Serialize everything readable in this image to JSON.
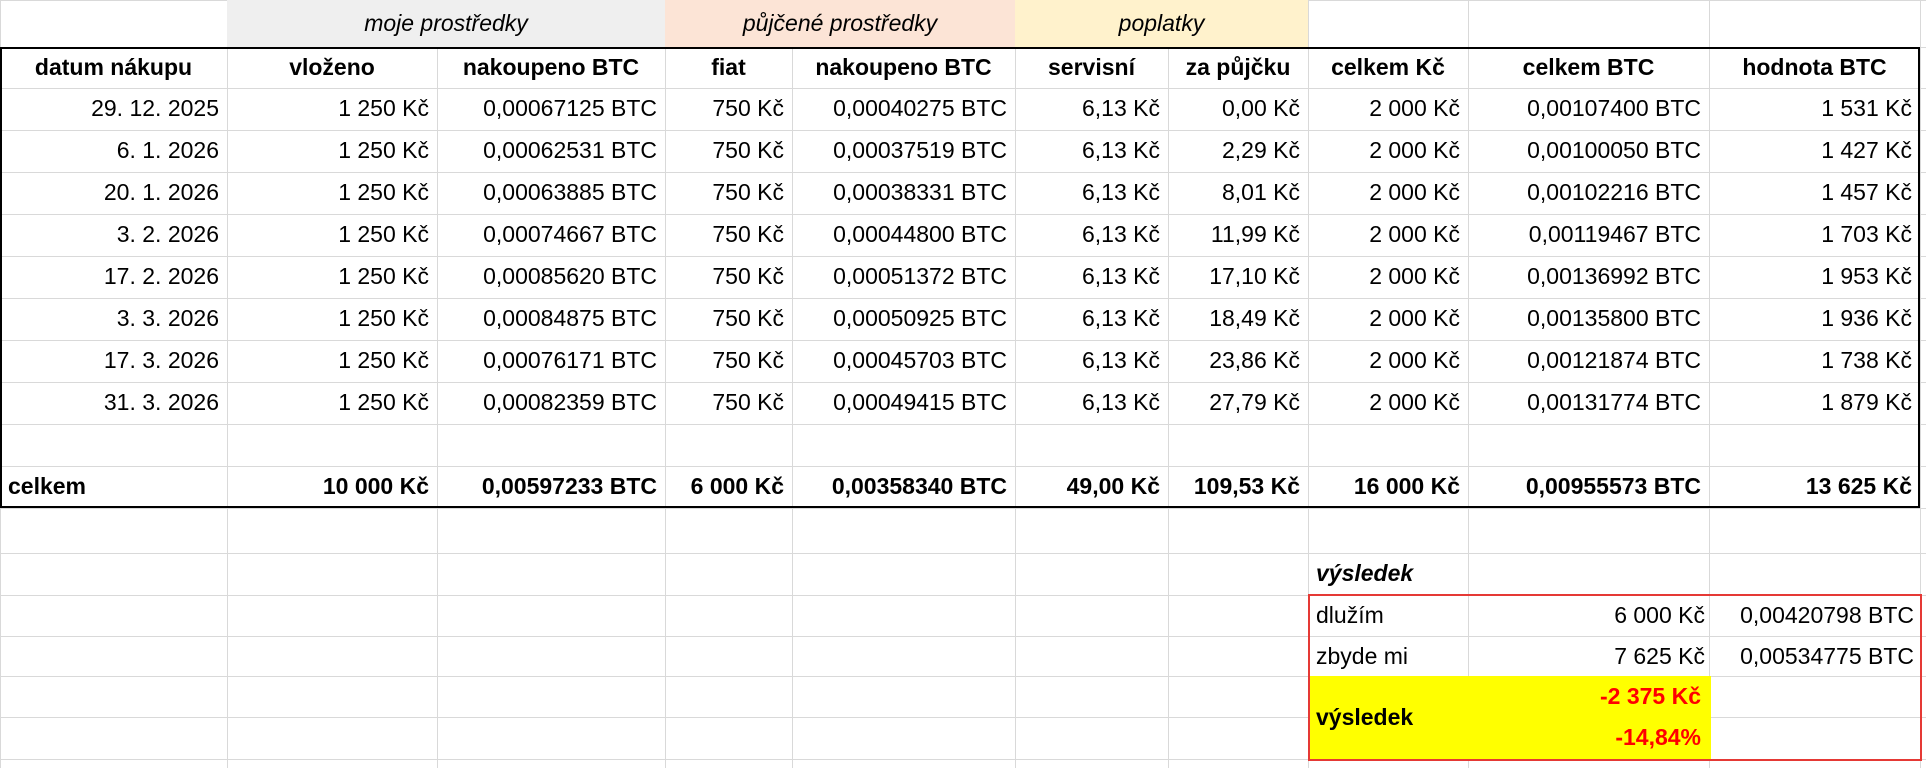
{
  "group_headers": {
    "own_funds": "moje prostředky",
    "borrowed_funds": "půjčené prostředky",
    "fees": "poplatky"
  },
  "columns": [
    "datum nákupu",
    "vloženo",
    "nakoupeno BTC",
    "fiat",
    "nakoupeno BTC",
    "servisní",
    "za půjčku",
    "celkem Kč",
    "celkem BTC",
    "hodnota BTC"
  ],
  "rows": [
    [
      "29. 12. 2025",
      "1 250 Kč",
      "0,00067125 BTC",
      "750 Kč",
      "0,00040275 BTC",
      "6,13 Kč",
      "0,00 Kč",
      "2 000 Kč",
      "0,00107400 BTC",
      "1 531 Kč"
    ],
    [
      "6. 1. 2026",
      "1 250 Kč",
      "0,00062531 BTC",
      "750 Kč",
      "0,00037519 BTC",
      "6,13 Kč",
      "2,29 Kč",
      "2 000 Kč",
      "0,00100050 BTC",
      "1 427 Kč"
    ],
    [
      "20. 1. 2026",
      "1 250 Kč",
      "0,00063885 BTC",
      "750 Kč",
      "0,00038331 BTC",
      "6,13 Kč",
      "8,01 Kč",
      "2 000 Kč",
      "0,00102216 BTC",
      "1 457 Kč"
    ],
    [
      "3. 2. 2026",
      "1 250 Kč",
      "0,00074667 BTC",
      "750 Kč",
      "0,00044800 BTC",
      "6,13 Kč",
      "11,99 Kč",
      "2 000 Kč",
      "0,00119467 BTC",
      "1 703 Kč"
    ],
    [
      "17. 2. 2026",
      "1 250 Kč",
      "0,00085620 BTC",
      "750 Kč",
      "0,00051372 BTC",
      "6,13 Kč",
      "17,10 Kč",
      "2 000 Kč",
      "0,00136992 BTC",
      "1 953 Kč"
    ],
    [
      "3. 3. 2026",
      "1 250 Kč",
      "0,00084875 BTC",
      "750 Kč",
      "0,00050925 BTC",
      "6,13 Kč",
      "18,49 Kč",
      "2 000 Kč",
      "0,00135800 BTC",
      "1 936 Kč"
    ],
    [
      "17. 3. 2026",
      "1 250 Kč",
      "0,00076171 BTC",
      "750 Kč",
      "0,00045703 BTC",
      "6,13 Kč",
      "23,86 Kč",
      "2 000 Kč",
      "0,00121874 BTC",
      "1 738 Kč"
    ],
    [
      "31. 3. 2026",
      "1 250 Kč",
      "0,00082359 BTC",
      "750 Kč",
      "0,00049415 BTC",
      "6,13 Kč",
      "27,79 Kč",
      "2 000 Kč",
      "0,00131774 BTC",
      "1 879 Kč"
    ]
  ],
  "totals": [
    "celkem",
    "10 000 Kč",
    "0,00597233 BTC",
    "6 000 Kč",
    "0,00358340 BTC",
    "49,00 Kč",
    "109,53 Kč",
    "16 000 Kč",
    "0,00955573 BTC",
    "13 625 Kč"
  ],
  "summary": {
    "title": "výsledek",
    "owe_label": "dlužím",
    "owe_czk": "6 000 Kč",
    "owe_btc": "0,00420798 BTC",
    "remain_label": "zbyde mi",
    "remain_czk": "7 625 Kč",
    "remain_btc": "0,00534775 BTC",
    "result_label": "výsledek",
    "result_czk": "-2 375 Kč",
    "result_pct": "-14,84%"
  },
  "colors": {
    "own_band": "#efefef",
    "borrowed_band": "#fce4d6",
    "fees_band": "#fff2cc",
    "result_fill": "#ffff00",
    "result_text": "#ff0000",
    "summary_border": "#e53935"
  }
}
